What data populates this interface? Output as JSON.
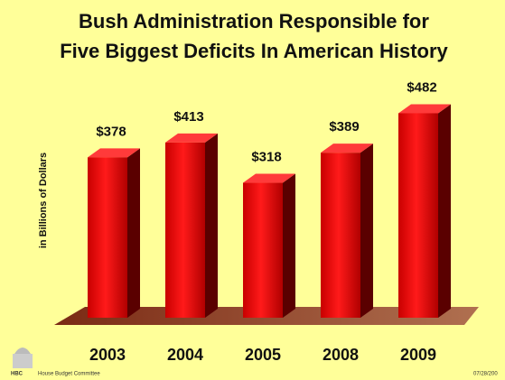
{
  "chart_data": {
    "type": "bar3d",
    "title": [
      "Bush Administration Responsible for",
      "Five Biggest Deficits In American History"
    ],
    "y_label": "in Billions of Dollars",
    "categories": [
      "2003",
      "2004",
      "2005",
      "2008",
      "2009"
    ],
    "values": [
      378,
      413,
      318,
      389,
      482
    ],
    "value_labels": [
      "$378",
      "$413",
      "$318",
      "$389",
      "$482"
    ],
    "color": "#e00000",
    "ylim": [
      0,
      500
    ],
    "footer": {
      "logo": "HBC",
      "source": "House Budget Committee",
      "date": "07/28/200"
    }
  }
}
